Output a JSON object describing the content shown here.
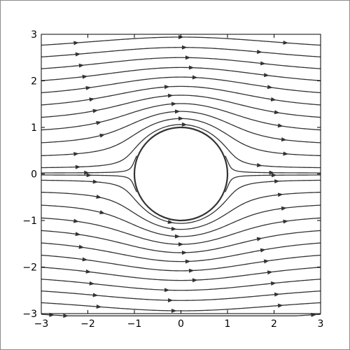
{
  "chart_data": {
    "type": "line",
    "subtype": "streamplot",
    "title": "",
    "xlabel": "",
    "ylabel": "",
    "xlim": [
      -3,
      3
    ],
    "ylim": [
      -3,
      3
    ],
    "grid": false,
    "legend": "none",
    "x_ticks": [
      -3,
      -2,
      -1,
      0,
      1,
      2,
      3
    ],
    "x_tick_labels": [
      "−3",
      "−2",
      "−1",
      "0",
      "1",
      "2",
      "3"
    ],
    "y_ticks": [
      -3,
      -2,
      -1,
      0,
      1,
      2,
      3
    ],
    "y_tick_labels": [
      "−3",
      "−2",
      "−1",
      "0",
      "1",
      "2",
      "3"
    ],
    "flow": {
      "kind": "uniform flow past a cylinder",
      "free_stream_speed": 1,
      "direction": "left-to-right",
      "cylinder": {
        "center": [
          0,
          0
        ],
        "radius": 1
      }
    },
    "streamlines": [
      {
        "stream_value": 2.6,
        "x_range": [
          -3,
          3
        ]
      },
      {
        "stream_value": 2.35,
        "x_range": [
          -3,
          3
        ]
      },
      {
        "stream_value": 2.1,
        "x_range": [
          -3,
          3
        ]
      },
      {
        "stream_value": 1.85,
        "x_range": [
          -3,
          3
        ]
      },
      {
        "stream_value": 1.6,
        "x_range": [
          -3,
          3
        ]
      },
      {
        "stream_value": 1.35,
        "x_range": [
          -3,
          3
        ]
      },
      {
        "stream_value": 1.1,
        "x_range": [
          -3,
          3
        ]
      },
      {
        "stream_value": 0.85,
        "x_range": [
          -3,
          3
        ]
      },
      {
        "stream_value": 0.6,
        "x_range": [
          -3,
          3
        ]
      },
      {
        "stream_value": 0.35,
        "x_range": [
          -3,
          3
        ]
      },
      {
        "stream_value": 0.12,
        "x_range": [
          -3,
          3
        ]
      },
      {
        "stream_value": 0.02,
        "x_range": [
          -3,
          -0.95
        ]
      },
      {
        "stream_value": 0.02,
        "x_range": [
          0.95,
          3
        ]
      },
      {
        "stream_value": -0.02,
        "x_range": [
          -3,
          -0.95
        ]
      },
      {
        "stream_value": -0.02,
        "x_range": [
          0.95,
          3
        ]
      },
      {
        "stream_value": -0.12,
        "x_range": [
          -3,
          3
        ]
      },
      {
        "stream_value": -0.35,
        "x_range": [
          -3,
          3
        ]
      },
      {
        "stream_value": -0.6,
        "x_range": [
          -3,
          3
        ]
      },
      {
        "stream_value": -0.85,
        "x_range": [
          -3,
          3
        ]
      },
      {
        "stream_value": -1.1,
        "x_range": [
          -3,
          3
        ]
      },
      {
        "stream_value": -1.35,
        "x_range": [
          -3,
          3
        ]
      },
      {
        "stream_value": -1.6,
        "x_range": [
          -3,
          3
        ]
      },
      {
        "stream_value": -1.85,
        "x_range": [
          -3,
          3
        ]
      },
      {
        "stream_value": -2.1,
        "x_range": [
          -3,
          3
        ]
      },
      {
        "stream_value": -2.35,
        "x_range": [
          -3,
          3
        ]
      },
      {
        "stream_value": -2.6,
        "x_range": [
          -3,
          3
        ]
      },
      {
        "stream_value": -2.85,
        "x_range": [
          -3,
          3
        ]
      }
    ],
    "colors": {
      "line": "#333333",
      "circle": "#333333",
      "axes": "#000000",
      "frame": "#8c8c8c"
    }
  }
}
